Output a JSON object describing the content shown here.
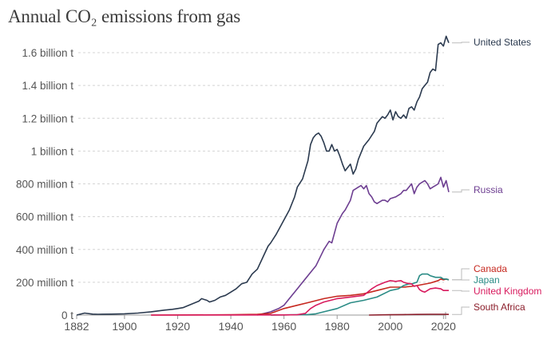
{
  "chart_data": {
    "type": "line",
    "title": "Annual CO₂ emissions from gas",
    "xlabel": "",
    "ylabel": "",
    "xlim": [
      1882,
      2022
    ],
    "ylim": [
      0,
      1700
    ],
    "grid": true,
    "legend_placement": "right (inline line labels)",
    "y_ticks": [
      {
        "value": 0,
        "label": "0 t"
      },
      {
        "value": 200,
        "label": "200 million t"
      },
      {
        "value": 400,
        "label": "400 million t"
      },
      {
        "value": 600,
        "label": "600 million t"
      },
      {
        "value": 800,
        "label": "800 million t"
      },
      {
        "value": 1000,
        "label": "1 billion t"
      },
      {
        "value": 1200,
        "label": "1.2 billion t"
      },
      {
        "value": 1400,
        "label": "1.4 billion t"
      },
      {
        "value": 1600,
        "label": "1.6 billion t"
      }
    ],
    "x_ticks": [
      {
        "value": 1882,
        "label": "1882"
      },
      {
        "value": 1900,
        "label": "1900"
      },
      {
        "value": 1920,
        "label": "1920"
      },
      {
        "value": 1940,
        "label": "1940"
      },
      {
        "value": 1960,
        "label": "1960"
      },
      {
        "value": 1980,
        "label": "1980"
      },
      {
        "value": 2000,
        "label": "2000"
      },
      {
        "value": 2020,
        "label": "2020"
      }
    ],
    "units": "million tonnes",
    "series": [
      {
        "name": "United States",
        "color": "#2b3a4f",
        "x": [
          1882,
          1885,
          1888,
          1890,
          1895,
          1900,
          1905,
          1910,
          1915,
          1918,
          1920,
          1922,
          1925,
          1928,
          1929,
          1931,
          1932,
          1934,
          1936,
          1938,
          1940,
          1942,
          1944,
          1946,
          1948,
          1950,
          1952,
          1954,
          1955,
          1957,
          1959,
          1960,
          1962,
          1964,
          1965,
          1967,
          1969,
          1970,
          1971,
          1972,
          1973,
          1974,
          1975,
          1976,
          1977,
          1978,
          1979,
          1980,
          1981,
          1982,
          1983,
          1984,
          1985,
          1986,
          1987,
          1988,
          1990,
          1992,
          1994,
          1995,
          1996,
          1997,
          1998,
          1999,
          2000,
          2001,
          2002,
          2003,
          2004,
          2005,
          2006,
          2007,
          2008,
          2009,
          2010,
          2011,
          2012,
          2013,
          2014,
          2015,
          2016,
          2017,
          2018,
          2019,
          2020,
          2021,
          2022
        ],
        "values": [
          0,
          12,
          6,
          5,
          6,
          8,
          12,
          20,
          30,
          35,
          40,
          45,
          65,
          85,
          100,
          90,
          80,
          90,
          110,
          120,
          140,
          160,
          190,
          200,
          250,
          280,
          350,
          420,
          440,
          490,
          550,
          580,
          640,
          720,
          780,
          830,
          940,
          1040,
          1080,
          1100,
          1110,
          1090,
          1050,
          1000,
          1000,
          1040,
          1000,
          1010,
          970,
          920,
          880,
          900,
          920,
          860,
          890,
          950,
          1030,
          1070,
          1120,
          1170,
          1190,
          1210,
          1200,
          1220,
          1250,
          1190,
          1240,
          1210,
          1200,
          1220,
          1200,
          1260,
          1270,
          1250,
          1300,
          1330,
          1380,
          1400,
          1420,
          1480,
          1500,
          1490,
          1650,
          1660,
          1640,
          1700,
          1660
        ]
      },
      {
        "name": "Russia",
        "color": "#6d3e91",
        "x": [
          1950,
          1955,
          1958,
          1960,
          1962,
          1965,
          1967,
          1970,
          1972,
          1975,
          1977,
          1978,
          1980,
          1982,
          1983,
          1985,
          1986,
          1987,
          1988,
          1989,
          1990,
          1991,
          1992,
          1993,
          1994,
          1995,
          1996,
          1997,
          1998,
          1999,
          2000,
          2002,
          2004,
          2005,
          2006,
          2008,
          2009,
          2010,
          2011,
          2012,
          2013,
          2014,
          2015,
          2016,
          2017,
          2018,
          2019,
          2020,
          2021,
          2022
        ],
        "values": [
          0,
          20,
          40,
          60,
          100,
          160,
          200,
          260,
          300,
          400,
          450,
          440,
          560,
          620,
          640,
          700,
          760,
          770,
          780,
          790,
          770,
          790,
          740,
          720,
          690,
          680,
          690,
          700,
          700,
          690,
          710,
          720,
          740,
          760,
          760,
          800,
          740,
          780,
          800,
          810,
          820,
          800,
          770,
          780,
          790,
          800,
          840,
          780,
          820,
          750
        ]
      },
      {
        "name": "Canada",
        "color": "#c6281f",
        "x": [
          1910,
          1940,
          1950,
          1955,
          1960,
          1965,
          1970,
          1975,
          1980,
          1985,
          1990,
          1995,
          2000,
          2005,
          2008,
          2010,
          2015,
          2018,
          2019,
          2020,
          2021,
          2022
        ],
        "values": [
          0,
          2,
          5,
          10,
          40,
          60,
          80,
          100,
          115,
          120,
          130,
          150,
          170,
          170,
          175,
          180,
          195,
          210,
          220,
          215,
          220,
          215
        ]
      },
      {
        "name": "Japan",
        "color": "#2a8b85",
        "x": [
          1955,
          1960,
          1965,
          1969,
          1972,
          1975,
          1980,
          1985,
          1990,
          1995,
          2000,
          2003,
          2005,
          2007,
          2008,
          2010,
          2011,
          2012,
          2014,
          2015,
          2017,
          2019,
          2020,
          2021,
          2022
        ],
        "values": [
          0,
          1,
          2,
          3,
          8,
          20,
          40,
          75,
          90,
          110,
          150,
          160,
          180,
          190,
          190,
          200,
          240,
          250,
          250,
          240,
          230,
          230,
          220,
          220,
          215
        ]
      },
      {
        "name": "United Kingdom",
        "color": "#d81b5e",
        "x": [
          1910,
          1960,
          1965,
          1968,
          1970,
          1972,
          1975,
          1980,
          1985,
          1990,
          1993,
          1995,
          1998,
          2000,
          2002,
          2004,
          2005,
          2006,
          2008,
          2009,
          2010,
          2011,
          2012,
          2013,
          2015,
          2017,
          2019,
          2020,
          2022
        ],
        "values": [
          0,
          1,
          2,
          10,
          40,
          60,
          80,
          100,
          110,
          120,
          160,
          180,
          200,
          210,
          205,
          210,
          200,
          195,
          190,
          175,
          180,
          155,
          145,
          140,
          160,
          165,
          160,
          150,
          150
        ]
      },
      {
        "name": "South Africa",
        "color": "#8b1e2b",
        "x": [
          1992,
          2000,
          2005,
          2010,
          2015,
          2020,
          2022
        ],
        "values": [
          0,
          2,
          3,
          4,
          5,
          5,
          4
        ]
      }
    ]
  }
}
